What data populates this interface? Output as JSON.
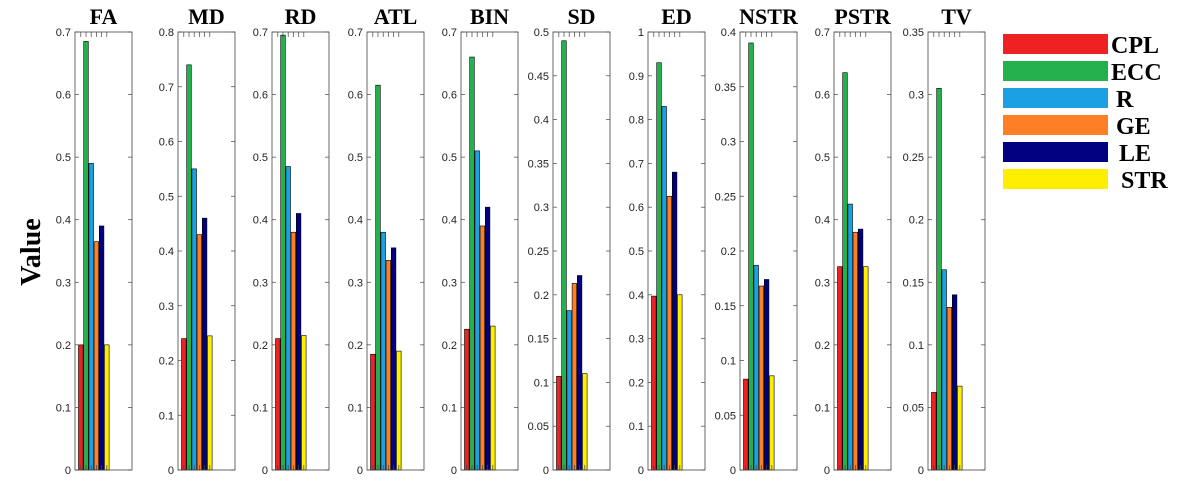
{
  "chart_data": {
    "type": "bar",
    "ylabel": "Value",
    "legend": {
      "placement": "right",
      "entries": [
        {
          "name": "CPL",
          "color": "#ee2222"
        },
        {
          "name": "ECC",
          "color": "#22b14c"
        },
        {
          "name": "R",
          "color": "#1ca0e4"
        },
        {
          "name": "GE",
          "color": "#ff7f27"
        },
        {
          "name": "LE",
          "color": "#000080"
        },
        {
          "name": "STR",
          "color": "#ffee00"
        }
      ]
    },
    "panels": [
      {
        "title": "FA",
        "ylim": [
          0,
          0.7
        ],
        "ticks": [
          "0",
          "0.1",
          "0.2",
          "0.3",
          "0.4",
          "0.5",
          "0.6",
          "0.7"
        ],
        "values": [
          0.2,
          0.685,
          0.49,
          0.365,
          0.39,
          0.2
        ]
      },
      {
        "title": "MD",
        "ylim": [
          0,
          0.8
        ],
        "ticks": [
          "0",
          "0.1",
          "0.2",
          "0.3",
          "0.4",
          "0.5",
          "0.6",
          "0.7",
          "0.8"
        ],
        "values": [
          0.24,
          0.74,
          0.55,
          0.43,
          0.46,
          0.245
        ]
      },
      {
        "title": "RD",
        "ylim": [
          0,
          0.7
        ],
        "ticks": [
          "0",
          "0.1",
          "0.2",
          "0.3",
          "0.4",
          "0.5",
          "0.6",
          "0.7"
        ],
        "values": [
          0.21,
          0.695,
          0.485,
          0.38,
          0.41,
          0.215
        ]
      },
      {
        "title": "ATL",
        "ylim": [
          0,
          0.7
        ],
        "ticks": [
          "0",
          "0.1",
          "0.2",
          "0.3",
          "0.4",
          "0.5",
          "0.6",
          "0.7"
        ],
        "values": [
          0.185,
          0.615,
          0.38,
          0.335,
          0.355,
          0.19
        ]
      },
      {
        "title": "BIN",
        "ylim": [
          0,
          0.7
        ],
        "ticks": [
          "0",
          "0.1",
          "0.2",
          "0.3",
          "0.4",
          "0.5",
          "0.6",
          "0.7"
        ],
        "values": [
          0.225,
          0.66,
          0.51,
          0.39,
          0.42,
          0.23
        ]
      },
      {
        "title": "SD",
        "ylim": [
          0,
          0.5
        ],
        "ticks": [
          "0",
          "0.05",
          "0.1",
          "0.15",
          "0.2",
          "0.25",
          "0.3",
          "0.35",
          "0.4",
          "0.45",
          "0.5"
        ],
        "values": [
          0.107,
          0.49,
          0.182,
          0.213,
          0.222,
          0.11
        ]
      },
      {
        "title": "ED",
        "ylim": [
          0,
          1
        ],
        "ticks": [
          "0",
          "0.1",
          "0.2",
          "0.3",
          "0.4",
          "0.5",
          "0.6",
          "0.7",
          "0.8",
          "0.9",
          "1"
        ],
        "values": [
          0.397,
          0.93,
          0.83,
          0.625,
          0.68,
          0.4
        ]
      },
      {
        "title": "NSTR",
        "ylim": [
          0,
          0.4
        ],
        "ticks": [
          "0",
          "0.05",
          "0.1",
          "0.15",
          "0.2",
          "0.25",
          "0.3",
          "0.35",
          "0.4"
        ],
        "values": [
          0.083,
          0.39,
          0.187,
          0.168,
          0.174,
          0.086
        ]
      },
      {
        "title": "PSTR",
        "ylim": [
          0,
          0.7
        ],
        "ticks": [
          "0",
          "0.1",
          "0.2",
          "0.3",
          "0.4",
          "0.5",
          "0.6",
          "0.7"
        ],
        "values": [
          0.325,
          0.635,
          0.425,
          0.38,
          0.385,
          0.325
        ]
      },
      {
        "title": "TV",
        "ylim": [
          0,
          0.35
        ],
        "ticks": [
          "0",
          "0.05",
          "0.1",
          "0.15",
          "0.2",
          "0.25",
          "0.3",
          "0.35"
        ],
        "values": [
          0.062,
          0.305,
          0.16,
          0.13,
          0.14,
          0.067
        ]
      }
    ]
  }
}
